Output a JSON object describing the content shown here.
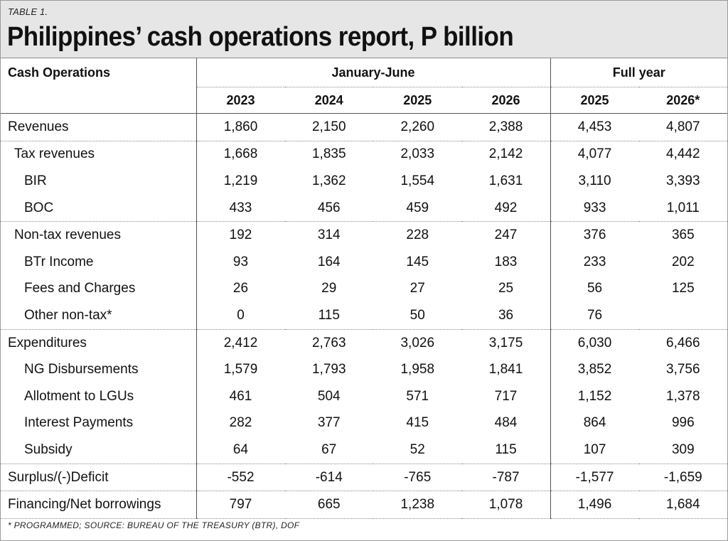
{
  "table_tag": "TABLE 1.",
  "title": "Philippines’ cash operations report, P billion",
  "header": {
    "row_label": "Cash Operations",
    "group1": "January-June",
    "group2": "Full year",
    "years": [
      "2023",
      "2024",
      "2025",
      "2026",
      "2025",
      "2026*"
    ]
  },
  "rows": [
    {
      "label": "Revenues",
      "values": [
        "1,860",
        "2,150",
        "2,260",
        "2,388",
        "4,453",
        "4,807"
      ]
    },
    {
      "label": "Tax revenues",
      "values": [
        "1,668",
        "1,835",
        "2,033",
        "2,142",
        "4,077",
        "4,442"
      ]
    },
    {
      "label": "BIR",
      "values": [
        "1,219",
        "1,362",
        "1,554",
        "1,631",
        "3,110",
        "3,393"
      ]
    },
    {
      "label": "BOC",
      "values": [
        "433",
        "456",
        "459",
        "492",
        "933",
        "1,011"
      ]
    },
    {
      "label": "Non-tax revenues",
      "values": [
        "192",
        "314",
        "228",
        "247",
        "376",
        "365"
      ]
    },
    {
      "label": "BTr Income",
      "values": [
        "93",
        "164",
        "145",
        "183",
        "233",
        "202"
      ]
    },
    {
      "label": "Fees and Charges",
      "values": [
        "26",
        "29",
        "27",
        "25",
        "56",
        "125"
      ]
    },
    {
      "label": "Other non-tax*",
      "values": [
        "0",
        "115",
        "50",
        "36",
        "76",
        ""
      ]
    },
    {
      "label": "Expenditures",
      "values": [
        "2,412",
        "2,763",
        "3,026",
        "3,175",
        "6,030",
        "6,466"
      ]
    },
    {
      "label": "NG Disbursements",
      "values": [
        "1,579",
        "1,793",
        "1,958",
        "1,841",
        "3,852",
        "3,756"
      ]
    },
    {
      "label": "Allotment to LGUs",
      "values": [
        "461",
        "504",
        "571",
        "717",
        "1,152",
        "1,378"
      ]
    },
    {
      "label": "Interest Payments",
      "values": [
        "282",
        "377",
        "415",
        "484",
        "864",
        "996"
      ]
    },
    {
      "label": "Subsidy",
      "values": [
        "64",
        "67",
        "52",
        "115",
        "107",
        "309"
      ]
    },
    {
      "label": "Surplus/(-)Deficit",
      "values": [
        "-552",
        "-614",
        "-765",
        "-787",
        "-1,577",
        "-1,659"
      ]
    },
    {
      "label": "Financing/Net borrowings",
      "values": [
        "797",
        "665",
        "1,238",
        "1,078",
        "1,496",
        "1,684"
      ]
    }
  ],
  "footnote": "* PROGRAMMED; SOURCE: BUREAU OF THE TREASURY (BTR), DOF"
}
